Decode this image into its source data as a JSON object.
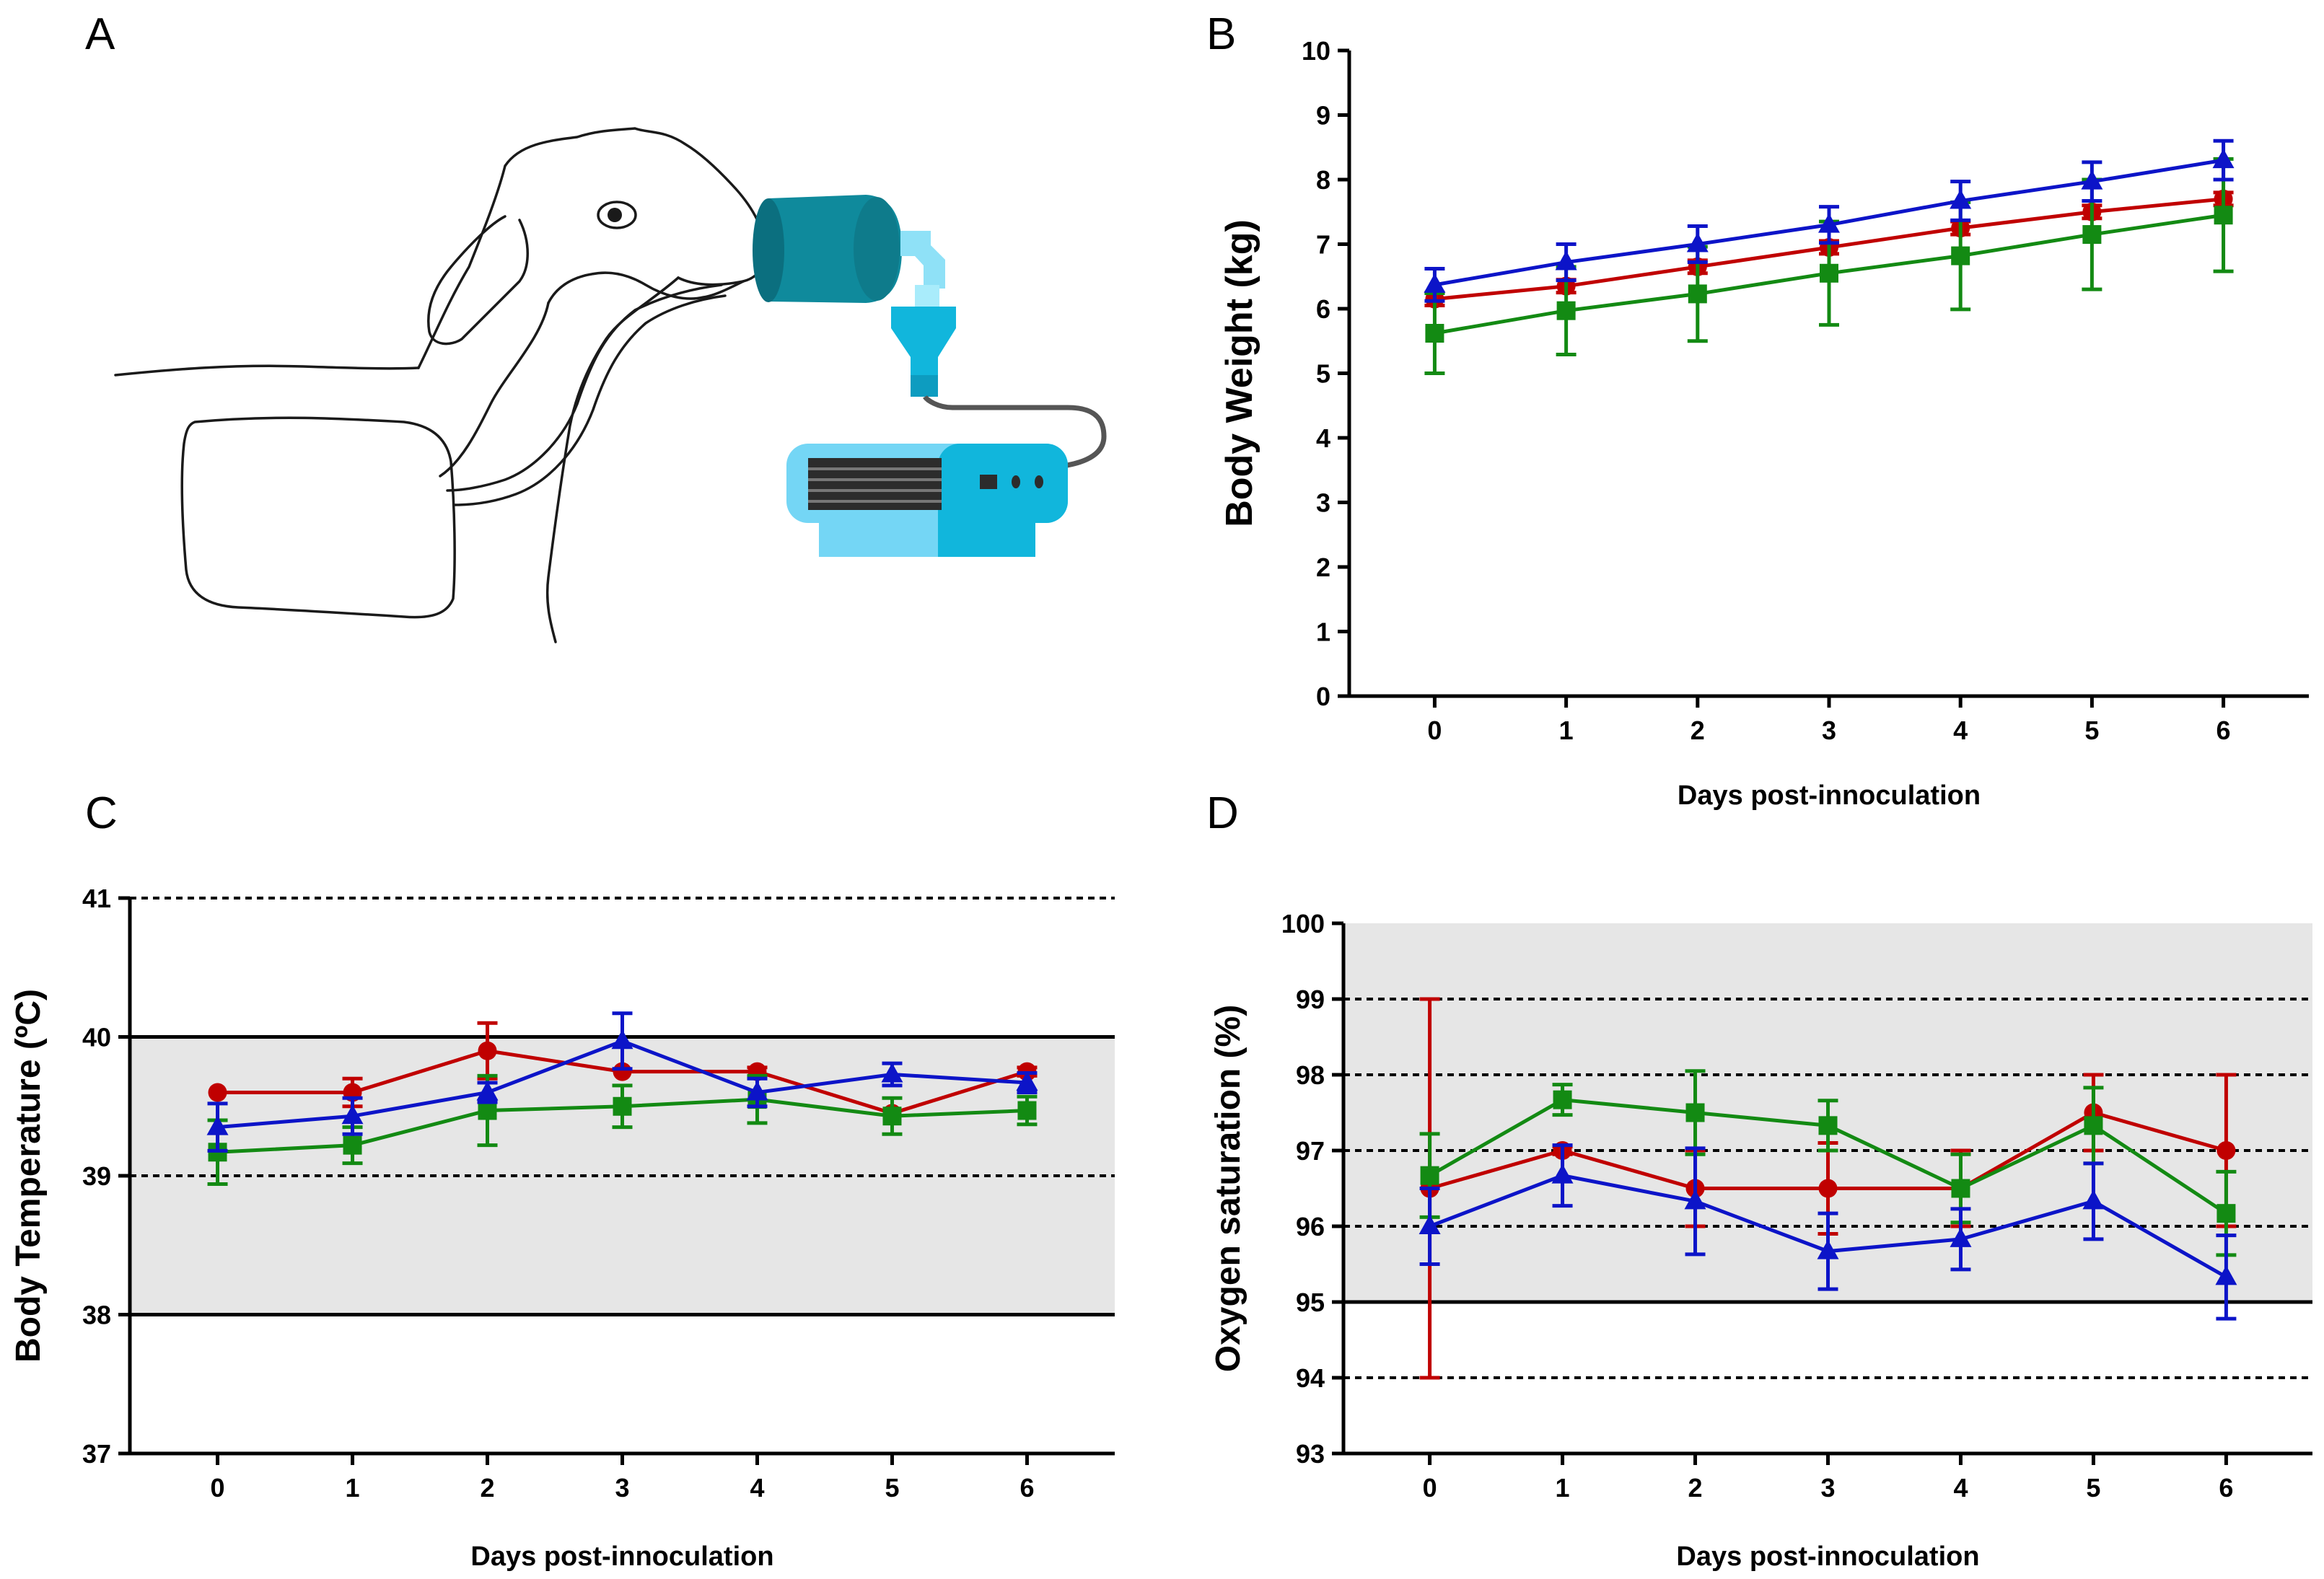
{
  "panels": {
    "a": {
      "letter": "A"
    },
    "b": {
      "letter": "B"
    },
    "c": {
      "letter": "C"
    },
    "d": {
      "letter": "D"
    }
  },
  "colors": {
    "red": "#c00000",
    "green": "#138a13",
    "blue": "#0c14c8",
    "normal_band": "#e6e6e6",
    "device_dark": "#0f8a9c",
    "device_light": "#74d6f5",
    "device_mid": "#11b6dc"
  },
  "illustration": {
    "subject": "lamb",
    "icons": [
      "nebulizer-mask-icon",
      "nebulizer-cup-icon",
      "nebulizer-compressor-icon"
    ]
  },
  "chart_data": [
    {
      "id": "b",
      "type": "line",
      "x": [
        0,
        1,
        2,
        3,
        4,
        5,
        6
      ],
      "xlabel": "Days post-innoculation",
      "ylabel": "Body Weight (kg)",
      "xlim": [
        -0.65,
        6.65
      ],
      "ylim": [
        0,
        10
      ],
      "yticks": [
        0,
        1,
        2,
        3,
        4,
        5,
        6,
        7,
        8,
        9,
        10
      ],
      "xticks": [
        0,
        1,
        2,
        3,
        4,
        5,
        6
      ],
      "series": [
        {
          "name": "red",
          "marker": "circle",
          "color": "#c00000",
          "values": [
            6.15,
            6.35,
            6.65,
            6.95,
            7.25,
            7.5,
            7.7
          ],
          "errors": [
            0.1,
            0.1,
            0.1,
            0.1,
            0.1,
            0.1,
            0.1
          ]
        },
        {
          "name": "green",
          "marker": "square",
          "color": "#138a13",
          "values": [
            5.62,
            5.97,
            6.23,
            6.55,
            6.82,
            7.15,
            7.45
          ],
          "errors": [
            0.62,
            0.68,
            0.73,
            0.8,
            0.83,
            0.85,
            0.87
          ]
        },
        {
          "name": "blue",
          "marker": "triangle",
          "color": "#0c14c8",
          "values": [
            6.37,
            6.72,
            7.0,
            7.3,
            7.67,
            7.97,
            8.3
          ],
          "errors": [
            0.25,
            0.28,
            0.28,
            0.28,
            0.3,
            0.3,
            0.3
          ]
        }
      ]
    },
    {
      "id": "c",
      "type": "line",
      "x": [
        0,
        1,
        2,
        3,
        4,
        5,
        6
      ],
      "xlabel": "Days post-innoculation",
      "ylabel": "Body Temperature (ºC)",
      "xlim": [
        -0.65,
        6.65
      ],
      "ylim": [
        37,
        41
      ],
      "yticks": [
        37,
        38,
        39,
        40,
        41
      ],
      "xticks": [
        0,
        1,
        2,
        3,
        4,
        5,
        6
      ],
      "normal_range": [
        38,
        40
      ],
      "solid_lines": [
        38,
        40
      ],
      "dotted_lines": [
        39,
        41
      ],
      "series": [
        {
          "name": "red",
          "marker": "circle",
          "color": "#c00000",
          "values": [
            39.6,
            39.6,
            39.9,
            39.75,
            39.75,
            39.45,
            39.75
          ],
          "errors": [
            0.0,
            0.1,
            0.2,
            0.0,
            0.03,
            0.0,
            0.03
          ]
        },
        {
          "name": "green",
          "marker": "square",
          "color": "#138a13",
          "values": [
            39.17,
            39.22,
            39.47,
            39.5,
            39.55,
            39.43,
            39.47
          ],
          "errors": [
            0.23,
            0.13,
            0.25,
            0.15,
            0.17,
            0.13,
            0.1
          ]
        },
        {
          "name": "blue",
          "marker": "triangle",
          "color": "#0c14c8",
          "values": [
            39.35,
            39.43,
            39.6,
            39.97,
            39.6,
            39.73,
            39.67
          ],
          "errors": [
            0.17,
            0.13,
            0.07,
            0.2,
            0.1,
            0.08,
            0.07
          ]
        }
      ]
    },
    {
      "id": "d",
      "type": "line",
      "x": [
        0,
        1,
        2,
        3,
        4,
        5,
        6
      ],
      "xlabel": "Days post-innoculation",
      "ylabel": "Oxygen saturation (%)",
      "xlim": [
        -0.65,
        6.65
      ],
      "ylim": [
        93,
        100
      ],
      "yticks": [
        93,
        94,
        95,
        96,
        97,
        98,
        99,
        100
      ],
      "xticks": [
        0,
        1,
        2,
        3,
        4,
        5,
        6
      ],
      "normal_range": [
        95,
        100
      ],
      "solid_lines": [
        95
      ],
      "dotted_lines": [
        94,
        96,
        97,
        98,
        99
      ],
      "series": [
        {
          "name": "red",
          "marker": "circle",
          "color": "#c00000",
          "values": [
            96.5,
            97.0,
            96.5,
            96.5,
            96.5,
            97.5,
            97.0
          ],
          "errors": [
            2.5,
            0.05,
            0.5,
            0.6,
            0.5,
            0.5,
            1.0
          ]
        },
        {
          "name": "green",
          "marker": "square",
          "color": "#138a13",
          "values": [
            96.67,
            97.67,
            97.5,
            97.33,
            96.5,
            97.33,
            96.17
          ],
          "errors": [
            0.55,
            0.2,
            0.55,
            0.33,
            0.45,
            0.5,
            0.55
          ]
        },
        {
          "name": "blue",
          "marker": "triangle",
          "color": "#0c14c8",
          "values": [
            96.0,
            96.67,
            96.33,
            95.67,
            95.83,
            96.33,
            95.33
          ],
          "errors": [
            0.5,
            0.4,
            0.7,
            0.5,
            0.4,
            0.5,
            0.55
          ]
        }
      ]
    }
  ]
}
